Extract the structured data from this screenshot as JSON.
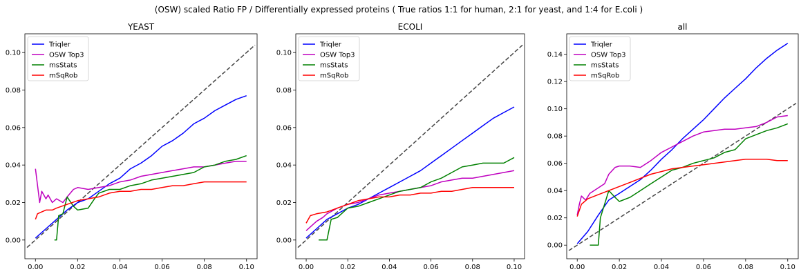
{
  "suptitle": "(OSW) scaled Ratio FP / Differentially expressed proteins ( True ratios 1:1 for human, 2:1 for yeast, and 1:4 for E.coli )",
  "chart_data": [
    {
      "type": "line",
      "title": "YEAST",
      "xlabel": "",
      "ylabel": "",
      "xlim": [
        -0.005,
        0.105
      ],
      "ylim": [
        -0.01,
        0.11
      ],
      "xticks": [
        0.0,
        0.02,
        0.04,
        0.06,
        0.08,
        0.1
      ],
      "xtick_labels": [
        "0.00",
        "0.02",
        "0.04",
        "0.06",
        "0.08",
        "0.10"
      ],
      "yticks": [
        0.0,
        0.02,
        0.04,
        0.06,
        0.08,
        0.1
      ],
      "ytick_labels": [
        "0.00",
        "0.02",
        "0.04",
        "0.06",
        "0.08",
        "0.10"
      ],
      "grid": false,
      "legend": "upper left",
      "reference_line": {
        "style": "dashed",
        "color": "#444444",
        "x": [
          -0.004,
          0.104
        ],
        "y": [
          -0.004,
          0.104
        ]
      },
      "series": [
        {
          "name": "Triqler",
          "color": "#0000ff",
          "x": [
            0.0,
            0.005,
            0.01,
            0.015,
            0.02,
            0.025,
            0.03,
            0.035,
            0.04,
            0.045,
            0.05,
            0.055,
            0.06,
            0.065,
            0.07,
            0.075,
            0.08,
            0.085,
            0.09,
            0.095,
            0.1
          ],
          "y": [
            0.001,
            0.006,
            0.011,
            0.016,
            0.02,
            0.022,
            0.026,
            0.03,
            0.033,
            0.038,
            0.041,
            0.045,
            0.05,
            0.053,
            0.057,
            0.062,
            0.065,
            0.069,
            0.072,
            0.075,
            0.077
          ]
        },
        {
          "name": "OSW Top3",
          "color": "#bf00bf",
          "x": [
            0.0,
            0.002,
            0.003,
            0.005,
            0.006,
            0.008,
            0.01,
            0.013,
            0.015,
            0.018,
            0.02,
            0.025,
            0.03,
            0.035,
            0.04,
            0.045,
            0.05,
            0.055,
            0.06,
            0.065,
            0.07,
            0.075,
            0.08,
            0.085,
            0.09,
            0.095,
            0.1
          ],
          "y": [
            0.038,
            0.02,
            0.026,
            0.022,
            0.024,
            0.02,
            0.022,
            0.02,
            0.023,
            0.027,
            0.028,
            0.027,
            0.028,
            0.029,
            0.031,
            0.032,
            0.034,
            0.035,
            0.036,
            0.037,
            0.038,
            0.039,
            0.039,
            0.04,
            0.041,
            0.042,
            0.042
          ]
        },
        {
          "name": "msStats",
          "color": "#008000",
          "x": [
            0.009,
            0.01,
            0.011,
            0.013,
            0.015,
            0.018,
            0.02,
            0.025,
            0.028,
            0.03,
            0.035,
            0.04,
            0.045,
            0.05,
            0.055,
            0.06,
            0.065,
            0.07,
            0.075,
            0.08,
            0.085,
            0.09,
            0.095,
            0.1
          ],
          "y": [
            0.0,
            0.0,
            0.013,
            0.014,
            0.023,
            0.018,
            0.016,
            0.017,
            0.022,
            0.025,
            0.027,
            0.027,
            0.029,
            0.03,
            0.032,
            0.033,
            0.034,
            0.035,
            0.036,
            0.039,
            0.04,
            0.042,
            0.043,
            0.045
          ]
        },
        {
          "name": "mSqRob",
          "color": "#ff0000",
          "x": [
            0.0,
            0.001,
            0.003,
            0.005,
            0.008,
            0.01,
            0.015,
            0.02,
            0.025,
            0.03,
            0.035,
            0.04,
            0.045,
            0.05,
            0.055,
            0.06,
            0.065,
            0.07,
            0.075,
            0.08,
            0.085,
            0.09,
            0.095,
            0.1
          ],
          "y": [
            0.011,
            0.014,
            0.015,
            0.016,
            0.016,
            0.017,
            0.019,
            0.021,
            0.022,
            0.023,
            0.025,
            0.026,
            0.026,
            0.027,
            0.027,
            0.028,
            0.029,
            0.029,
            0.03,
            0.031,
            0.031,
            0.031,
            0.031,
            0.031
          ]
        }
      ]
    },
    {
      "type": "line",
      "title": "ECOLI",
      "xlabel": "",
      "ylabel": "",
      "xlim": [
        -0.005,
        0.105
      ],
      "ylim": [
        -0.01,
        0.11
      ],
      "xticks": [
        0.0,
        0.02,
        0.04,
        0.06,
        0.08,
        0.1
      ],
      "xtick_labels": [
        "0.00",
        "0.02",
        "0.04",
        "0.06",
        "0.08",
        "0.10"
      ],
      "yticks": [
        0.0,
        0.02,
        0.04,
        0.06,
        0.08,
        0.1
      ],
      "ytick_labels": [
        "0.00",
        "0.02",
        "0.04",
        "0.06",
        "0.08",
        "0.10"
      ],
      "grid": false,
      "legend": "upper left",
      "reference_line": {
        "style": "dashed",
        "color": "#444444",
        "x": [
          -0.004,
          0.104
        ],
        "y": [
          -0.004,
          0.104
        ]
      },
      "series": [
        {
          "name": "Triqler",
          "color": "#0000ff",
          "x": [
            0.0,
            0.005,
            0.01,
            0.015,
            0.02,
            0.025,
            0.03,
            0.035,
            0.04,
            0.045,
            0.05,
            0.055,
            0.06,
            0.065,
            0.07,
            0.075,
            0.08,
            0.085,
            0.09,
            0.095,
            0.1
          ],
          "y": [
            0.001,
            0.006,
            0.011,
            0.014,
            0.017,
            0.019,
            0.022,
            0.025,
            0.028,
            0.031,
            0.034,
            0.037,
            0.041,
            0.045,
            0.049,
            0.053,
            0.057,
            0.061,
            0.065,
            0.068,
            0.071
          ]
        },
        {
          "name": "OSW Top3",
          "color": "#bf00bf",
          "x": [
            0.0,
            0.003,
            0.005,
            0.008,
            0.01,
            0.015,
            0.02,
            0.025,
            0.03,
            0.035,
            0.04,
            0.045,
            0.05,
            0.055,
            0.06,
            0.065,
            0.07,
            0.075,
            0.08,
            0.085,
            0.09,
            0.095,
            0.1
          ],
          "y": [
            0.005,
            0.008,
            0.01,
            0.012,
            0.014,
            0.017,
            0.019,
            0.02,
            0.022,
            0.024,
            0.025,
            0.026,
            0.027,
            0.028,
            0.029,
            0.031,
            0.032,
            0.033,
            0.033,
            0.034,
            0.035,
            0.036,
            0.037
          ]
        },
        {
          "name": "msStats",
          "color": "#008000",
          "x": [
            0.006,
            0.01,
            0.012,
            0.015,
            0.02,
            0.025,
            0.03,
            0.035,
            0.04,
            0.045,
            0.05,
            0.055,
            0.06,
            0.065,
            0.07,
            0.075,
            0.08,
            0.085,
            0.09,
            0.095,
            0.1
          ],
          "y": [
            0.0,
            0.0,
            0.011,
            0.012,
            0.017,
            0.018,
            0.02,
            0.022,
            0.024,
            0.026,
            0.027,
            0.028,
            0.031,
            0.033,
            0.036,
            0.039,
            0.04,
            0.041,
            0.041,
            0.041,
            0.044
          ]
        },
        {
          "name": "mSqRob",
          "color": "#ff0000",
          "x": [
            0.0,
            0.002,
            0.005,
            0.01,
            0.015,
            0.02,
            0.025,
            0.03,
            0.035,
            0.04,
            0.045,
            0.05,
            0.055,
            0.06,
            0.065,
            0.07,
            0.075,
            0.08,
            0.085,
            0.09,
            0.095,
            0.1
          ],
          "y": [
            0.009,
            0.013,
            0.014,
            0.015,
            0.017,
            0.019,
            0.021,
            0.022,
            0.023,
            0.023,
            0.024,
            0.024,
            0.025,
            0.025,
            0.026,
            0.026,
            0.027,
            0.028,
            0.028,
            0.028,
            0.028,
            0.028
          ]
        }
      ]
    },
    {
      "type": "line",
      "title": "all",
      "xlabel": "",
      "ylabel": "",
      "xlim": [
        -0.005,
        0.105
      ],
      "ylim": [
        -0.01,
        0.155
      ],
      "xticks": [
        0.0,
        0.02,
        0.04,
        0.06,
        0.08,
        0.1
      ],
      "xtick_labels": [
        "0.00",
        "0.02",
        "0.04",
        "0.06",
        "0.08",
        "0.10"
      ],
      "yticks": [
        0.0,
        0.02,
        0.04,
        0.06,
        0.08,
        0.1,
        0.12,
        0.14
      ],
      "ytick_labels": [
        "0.00",
        "0.02",
        "0.04",
        "0.06",
        "0.08",
        "0.10",
        "0.12",
        "0.14"
      ],
      "grid": false,
      "legend": "upper left",
      "reference_line": {
        "style": "dashed",
        "color": "#444444",
        "x": [
          -0.004,
          0.104
        ],
        "y": [
          -0.004,
          0.104
        ]
      },
      "series": [
        {
          "name": "Triqler",
          "color": "#0000ff",
          "x": [
            0.0,
            0.005,
            0.01,
            0.015,
            0.02,
            0.025,
            0.03,
            0.035,
            0.04,
            0.045,
            0.05,
            0.055,
            0.06,
            0.065,
            0.07,
            0.075,
            0.08,
            0.085,
            0.09,
            0.095,
            0.1
          ],
          "y": [
            0.001,
            0.01,
            0.022,
            0.033,
            0.038,
            0.043,
            0.048,
            0.055,
            0.063,
            0.07,
            0.078,
            0.085,
            0.092,
            0.1,
            0.108,
            0.115,
            0.122,
            0.13,
            0.137,
            0.143,
            0.148
          ]
        },
        {
          "name": "OSW Top3",
          "color": "#bf00bf",
          "x": [
            0.0,
            0.001,
            0.002,
            0.004,
            0.006,
            0.008,
            0.01,
            0.013,
            0.015,
            0.018,
            0.02,
            0.025,
            0.03,
            0.035,
            0.04,
            0.045,
            0.05,
            0.055,
            0.06,
            0.065,
            0.07,
            0.075,
            0.08,
            0.085,
            0.09,
            0.095,
            0.1
          ],
          "y": [
            0.022,
            0.03,
            0.036,
            0.033,
            0.038,
            0.04,
            0.042,
            0.045,
            0.052,
            0.057,
            0.058,
            0.058,
            0.057,
            0.062,
            0.068,
            0.072,
            0.076,
            0.08,
            0.083,
            0.084,
            0.085,
            0.085,
            0.086,
            0.087,
            0.09,
            0.094,
            0.095
          ]
        },
        {
          "name": "msStats",
          "color": "#008000",
          "x": [
            0.006,
            0.01,
            0.011,
            0.013,
            0.015,
            0.018,
            0.02,
            0.025,
            0.03,
            0.035,
            0.04,
            0.045,
            0.05,
            0.055,
            0.06,
            0.065,
            0.07,
            0.075,
            0.08,
            0.085,
            0.09,
            0.095,
            0.1
          ],
          "y": [
            0.0,
            0.0,
            0.02,
            0.03,
            0.04,
            0.035,
            0.032,
            0.035,
            0.04,
            0.045,
            0.05,
            0.055,
            0.057,
            0.06,
            0.062,
            0.064,
            0.068,
            0.07,
            0.078,
            0.081,
            0.084,
            0.086,
            0.089
          ]
        },
        {
          "name": "mSqRob",
          "color": "#ff0000",
          "x": [
            0.0,
            0.002,
            0.005,
            0.01,
            0.015,
            0.02,
            0.025,
            0.03,
            0.035,
            0.04,
            0.045,
            0.05,
            0.055,
            0.06,
            0.065,
            0.07,
            0.075,
            0.08,
            0.085,
            0.09,
            0.095,
            0.1
          ],
          "y": [
            0.021,
            0.03,
            0.034,
            0.037,
            0.04,
            0.043,
            0.046,
            0.049,
            0.052,
            0.054,
            0.056,
            0.057,
            0.058,
            0.059,
            0.06,
            0.061,
            0.062,
            0.063,
            0.063,
            0.063,
            0.062,
            0.062
          ]
        }
      ]
    }
  ]
}
